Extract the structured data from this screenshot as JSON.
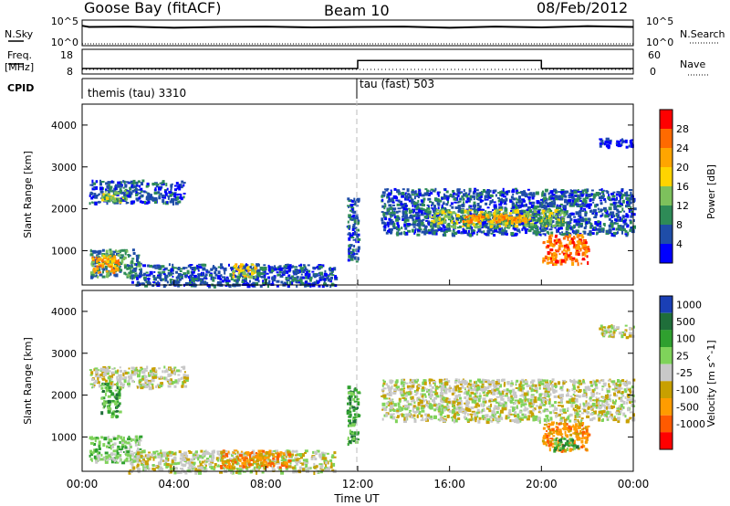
{
  "header": {
    "station": "Goose Bay (fitACF)",
    "beam": "Beam 10",
    "date": "08/Feb/2012"
  },
  "nsky_panel": {
    "left_label": "N.Sky",
    "right_label": "N.Search",
    "left_ticks": [
      "10^5",
      "10^0"
    ],
    "right_ticks": [
      "10^5",
      "10^0"
    ]
  },
  "freq_panel": {
    "left_label_1": "Freq.",
    "left_label_2": "[MHz]",
    "right_label": "Nave",
    "left_ticks": [
      "18",
      "8"
    ],
    "right_ticks": [
      "60",
      "0"
    ]
  },
  "cpid_panel": {
    "label": "CPID",
    "modes": [
      {
        "text": "themis (tau) 3310",
        "start_hour": 0
      },
      {
        "text": "tau (fast) 503",
        "start_hour": 12
      }
    ]
  },
  "time_axis": {
    "title": "Time UT",
    "ticks": [
      "00:00",
      "04:00",
      "08:00",
      "12:00",
      "16:00",
      "20:00",
      "00:00"
    ],
    "tick_hours": [
      0,
      4,
      8,
      12,
      16,
      20,
      24
    ]
  },
  "colors": {
    "power": [
      "#0000ff",
      "#1f4da8",
      "#2e8b57",
      "#7dc15c",
      "#ffd400",
      "#ffa500",
      "#ff6a00",
      "#ff0000"
    ],
    "velocity": [
      "#1a3fb5",
      "#1f6e3a",
      "#2fa02f",
      "#7fd35a",
      "#c8c8c8",
      "#c8a000",
      "#ff9c00",
      "#ff5a00",
      "#ff0000"
    ],
    "dash_line": "#bbbbbb",
    "nave_dots": "#000000"
  },
  "chart_data": [
    {
      "type": "line",
      "name": "N.Sky / N.Search",
      "x": [
        0,
        0.3,
        2,
        4,
        6,
        8,
        10,
        12,
        14,
        16,
        18,
        20,
        22,
        24
      ],
      "y_log10": [
        4.5,
        4.2,
        4.3,
        4.0,
        4.2,
        4.3,
        4.1,
        4.2,
        4.3,
        4.0,
        4.3,
        4.1,
        4.4,
        4.2
      ],
      "ylim_log10": [
        0,
        5
      ]
    },
    {
      "type": "line",
      "name": "Freq / Nave",
      "x": [
        0,
        12,
        12,
        20,
        20,
        24
      ],
      "freq_mhz": [
        10,
        10,
        13.5,
        13.5,
        10,
        10
      ],
      "nave_level": 0,
      "ylim_freq": [
        8,
        18
      ],
      "ylim_nave": [
        0,
        60
      ]
    },
    {
      "type": "heatmap",
      "title": "",
      "ylabel": "Slant Range [km]",
      "colorbar_label": "Power [dB]",
      "colorbar_ticks": [
        4,
        8,
        12,
        16,
        20,
        24,
        28
      ],
      "xlim": [
        0,
        24
      ],
      "ylim": [
        180,
        4500
      ],
      "yticks": [
        1000,
        2000,
        3000,
        4000
      ],
      "regions": [
        {
          "x0": 0.3,
          "x1": 4.5,
          "y0": 2150,
          "y1": 2700,
          "level": 1
        },
        {
          "x0": 0.8,
          "x1": 2.0,
          "y0": 2200,
          "y1": 2450,
          "level": 3
        },
        {
          "x0": 0.3,
          "x1": 2.5,
          "y0": 400,
          "y1": 1050,
          "level": 2
        },
        {
          "x0": 0.4,
          "x1": 1.6,
          "y0": 500,
          "y1": 900,
          "level": 5
        },
        {
          "x0": 2.0,
          "x1": 11.0,
          "y0": 180,
          "y1": 700,
          "level": 1
        },
        {
          "x0": 6.5,
          "x1": 7.5,
          "y0": 400,
          "y1": 700,
          "level": 4
        },
        {
          "x0": 11.5,
          "x1": 12.0,
          "y0": 800,
          "y1": 2300,
          "level": 1
        },
        {
          "x0": 13.0,
          "x1": 24.0,
          "y0": 1400,
          "y1": 2500,
          "level": 1
        },
        {
          "x0": 15.0,
          "x1": 21.0,
          "y0": 1600,
          "y1": 2000,
          "level": 3
        },
        {
          "x0": 16.5,
          "x1": 19.5,
          "y0": 1700,
          "y1": 1900,
          "level": 5
        },
        {
          "x0": 20.0,
          "x1": 22.0,
          "y0": 700,
          "y1": 1400,
          "level": 6
        },
        {
          "x0": 22.5,
          "x1": 24.0,
          "y0": 3500,
          "y1": 3700,
          "level": 0
        }
      ]
    },
    {
      "type": "heatmap",
      "title": "",
      "ylabel": "Slant Range [km]",
      "colorbar_label": "Velocity [m s^-1]",
      "colorbar_ticks": [
        1000,
        500,
        100,
        25,
        -25,
        -100,
        -500,
        -1000
      ],
      "xlim": [
        0,
        24
      ],
      "ylim": [
        180,
        4500
      ],
      "yticks": [
        1000,
        2000,
        3000,
        4000
      ],
      "regions": [
        {
          "x0": 0.3,
          "x1": 4.5,
          "y0": 2200,
          "y1": 2700,
          "level": 4
        },
        {
          "x0": 0.8,
          "x1": 1.6,
          "y0": 1500,
          "y1": 2300,
          "level": 2
        },
        {
          "x0": 0.3,
          "x1": 2.5,
          "y0": 400,
          "y1": 1050,
          "level": 3
        },
        {
          "x0": 2.0,
          "x1": 11.0,
          "y0": 180,
          "y1": 700,
          "level": 4
        },
        {
          "x0": 6.0,
          "x1": 9.0,
          "y0": 300,
          "y1": 700,
          "level": 6
        },
        {
          "x0": 11.5,
          "x1": 12.0,
          "y0": 800,
          "y1": 2300,
          "level": 2
        },
        {
          "x0": 13.0,
          "x1": 24.0,
          "y0": 1400,
          "y1": 2400,
          "level": 4
        },
        {
          "x0": 20.0,
          "x1": 22.0,
          "y0": 700,
          "y1": 1400,
          "level": 6
        },
        {
          "x0": 20.5,
          "x1": 21.5,
          "y0": 700,
          "y1": 1000,
          "level": 2
        },
        {
          "x0": 22.5,
          "x1": 24.0,
          "y0": 3400,
          "y1": 3700,
          "level": 4
        }
      ]
    }
  ]
}
